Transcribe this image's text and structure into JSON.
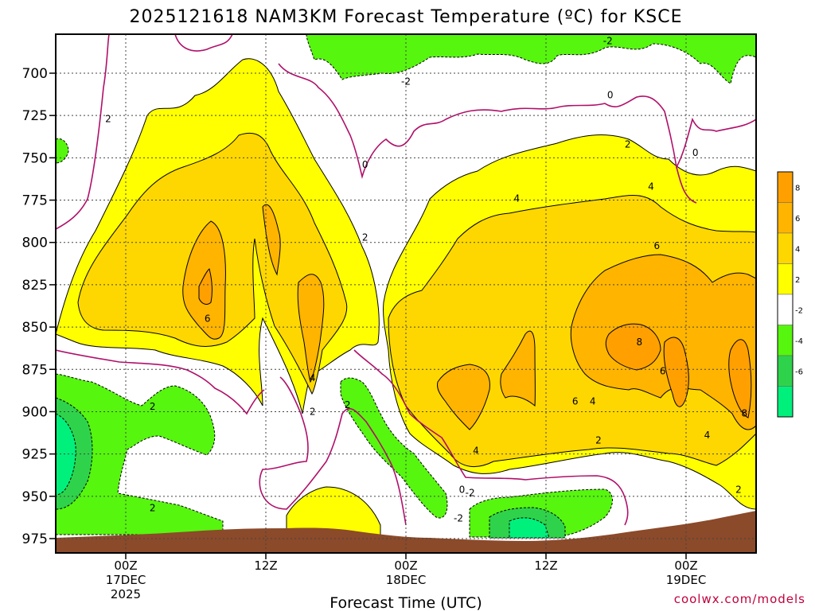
{
  "chart_data": {
    "type": "heatmap",
    "title": "2025121618 NAM3KM Forecast Temperature (ºC) for KSCE",
    "xlabel": "Forecast Time (UTC)",
    "ylabel": "",
    "y_axis": {
      "inverted": true,
      "ylim": [
        985,
        680
      ],
      "ticks": [
        700,
        725,
        750,
        775,
        800,
        825,
        850,
        875,
        900,
        925,
        950,
        975
      ]
    },
    "x_axis": {
      "xlim_hours": [
        -6,
        54
      ],
      "ticks": [
        {
          "hour": 0,
          "labels": [
            "00Z",
            "17DEC",
            "2025"
          ]
        },
        {
          "hour": 12,
          "labels": [
            "12Z"
          ]
        },
        {
          "hour": 24,
          "labels": [
            "00Z",
            "18DEC"
          ]
        },
        {
          "hour": 36,
          "labels": [
            "12Z"
          ]
        },
        {
          "hour": 48,
          "labels": [
            "00Z",
            "19DEC"
          ]
        }
      ]
    },
    "grid": true,
    "legend": "right",
    "colorbar": {
      "bins": [
        {
          "from": -8,
          "to": -6,
          "color": "#00f07c"
        },
        {
          "from": -6,
          "to": -4,
          "color": "#2fd34b"
        },
        {
          "from": -4,
          "to": -2,
          "color": "#56f60e"
        },
        {
          "from": -2,
          "to": 2,
          "color": "#ffffff"
        },
        {
          "from": 2,
          "to": 4,
          "color": "#ffff00"
        },
        {
          "from": 4,
          "to": 6,
          "color": "#ffd700"
        },
        {
          "from": 6,
          "to": 8,
          "color": "#ffb400"
        },
        {
          "from": 8,
          "to": 10,
          "color": "#ffa000"
        }
      ],
      "tick_labels": [
        "8",
        "6",
        "4",
        "2",
        "-2",
        "-4",
        "-6"
      ]
    },
    "contour_labels": [
      {
        "value": "2",
        "hour": -1.5,
        "p": 727
      },
      {
        "value": "6",
        "hour": 7,
        "p": 845
      },
      {
        "value": "4",
        "hour": 16,
        "p": 880
      },
      {
        "value": "2",
        "hour": 16,
        "p": 900
      },
      {
        "value": "2",
        "hour": 2.3,
        "p": 897
      },
      {
        "value": "2",
        "hour": 2.3,
        "p": 957
      },
      {
        "value": "0",
        "hour": 20.5,
        "p": 754
      },
      {
        "value": "2",
        "hour": 20.5,
        "p": 797
      },
      {
        "value": "-2",
        "hour": 24,
        "p": 705
      },
      {
        "value": "4",
        "hour": 33.5,
        "p": 774
      },
      {
        "value": "6",
        "hour": 38.5,
        "p": 894
      },
      {
        "value": "4",
        "hour": 40,
        "p": 894
      },
      {
        "value": "2",
        "hour": 40.5,
        "p": 917
      },
      {
        "value": "4",
        "hour": 30,
        "p": 923
      },
      {
        "value": "-2",
        "hour": 29.5,
        "p": 948
      },
      {
        "value": "0",
        "hour": 28.8,
        "p": 946
      },
      {
        "value": "-2",
        "hour": 28.5,
        "p": 963
      },
      {
        "value": "-2",
        "hour": 41.3,
        "p": 681
      },
      {
        "value": "0",
        "hour": 41.5,
        "p": 713
      },
      {
        "value": "2",
        "hour": 43,
        "p": 742
      },
      {
        "value": "4",
        "hour": 45,
        "p": 767
      },
      {
        "value": "0",
        "hour": 48.8,
        "p": 747
      },
      {
        "value": "6",
        "hour": 45.5,
        "p": 802
      },
      {
        "value": "8",
        "hour": 44,
        "p": 859
      },
      {
        "value": "6",
        "hour": 46,
        "p": 876
      },
      {
        "value": "4",
        "hour": 49.8,
        "p": 914
      },
      {
        "value": "8",
        "hour": 53,
        "p": 901
      },
      {
        "value": "2",
        "hour": 52.5,
        "p": 946
      },
      {
        "value": "2",
        "hour": 19,
        "p": 896
      }
    ]
  },
  "credit": "coolwx.com/models",
  "colors": {
    "ground": "#8b4a2a",
    "contour_zero": "#b0106a",
    "axis": "#000000"
  }
}
